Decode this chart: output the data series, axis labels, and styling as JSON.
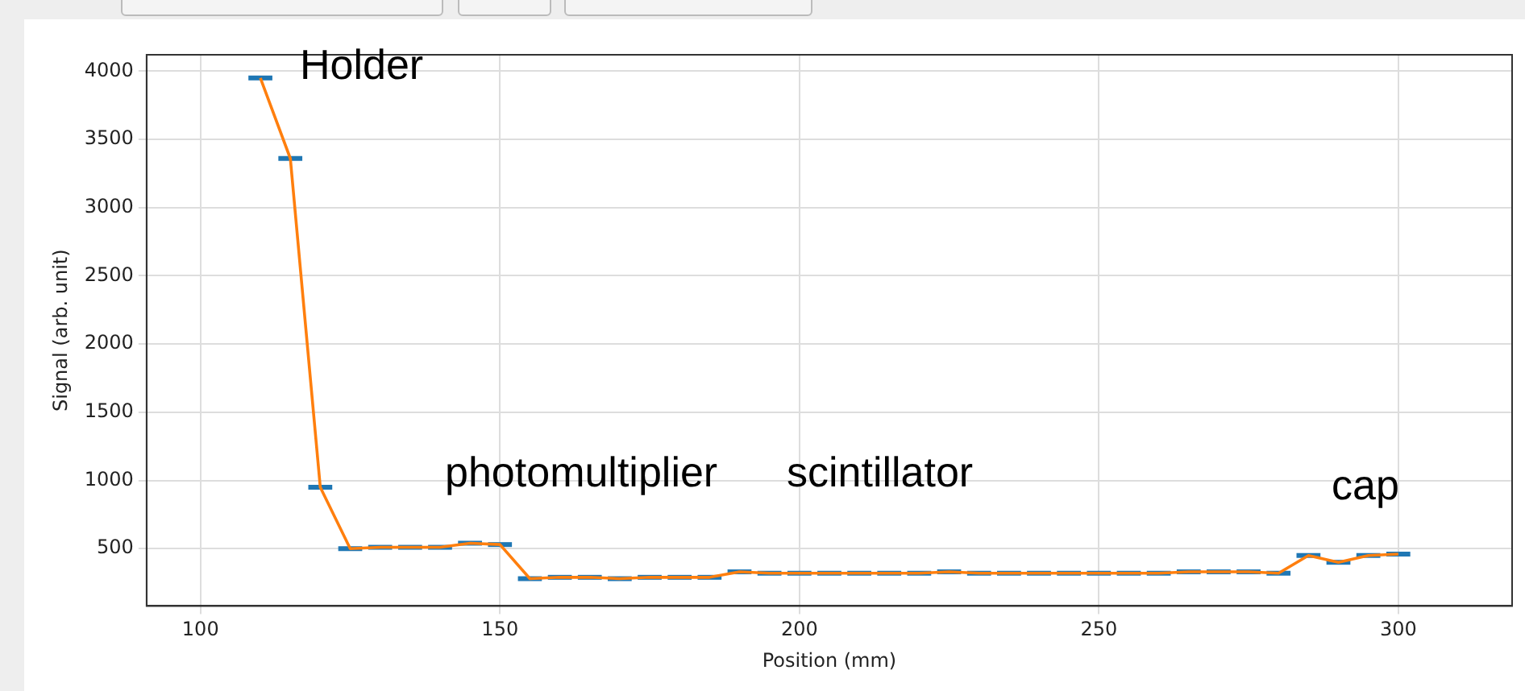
{
  "chart_data": {
    "type": "line",
    "xlabel": "Position (mm)",
    "ylabel": "Signal (arb. unit)",
    "x": [
      110,
      115,
      120,
      125,
      130,
      135,
      140,
      145,
      150,
      155,
      160,
      165,
      170,
      175,
      180,
      185,
      190,
      195,
      200,
      205,
      210,
      215,
      220,
      225,
      230,
      235,
      240,
      245,
      250,
      255,
      260,
      265,
      270,
      275,
      280,
      285,
      290,
      295,
      300
    ],
    "series": [
      {
        "color": "#ff7f0e",
        "values": [
          3950,
          3360,
          950,
          500,
          510,
          510,
          510,
          540,
          530,
          280,
          290,
          290,
          280,
          290,
          290,
          290,
          330,
          320,
          320,
          320,
          320,
          320,
          320,
          330,
          320,
          320,
          320,
          320,
          320,
          320,
          320,
          330,
          330,
          330,
          320,
          450,
          400,
          450,
          460
        ],
        "xerrors": [
          2,
          2,
          2,
          2,
          2,
          2,
          2,
          2,
          2,
          2,
          2,
          2,
          2,
          2,
          2,
          2,
          2,
          2,
          2,
          2,
          2,
          2,
          2,
          2,
          2,
          2,
          2,
          2,
          2,
          2,
          2,
          2,
          2,
          2,
          2,
          2,
          2,
          2,
          2
        ]
      }
    ],
    "xlim": [
      91,
      319
    ],
    "xticks": [
      100,
      150,
      200,
      250,
      300
    ],
    "ylim": [
      80,
      4120
    ],
    "yticks": [
      500,
      1000,
      1500,
      2000,
      2500,
      3000,
      3500,
      4000
    ],
    "grid": true,
    "marker": "none",
    "line_style": "solid",
    "annotations": [
      "Holder",
      "photomultiplier",
      "scintillator",
      "cap"
    ]
  }
}
